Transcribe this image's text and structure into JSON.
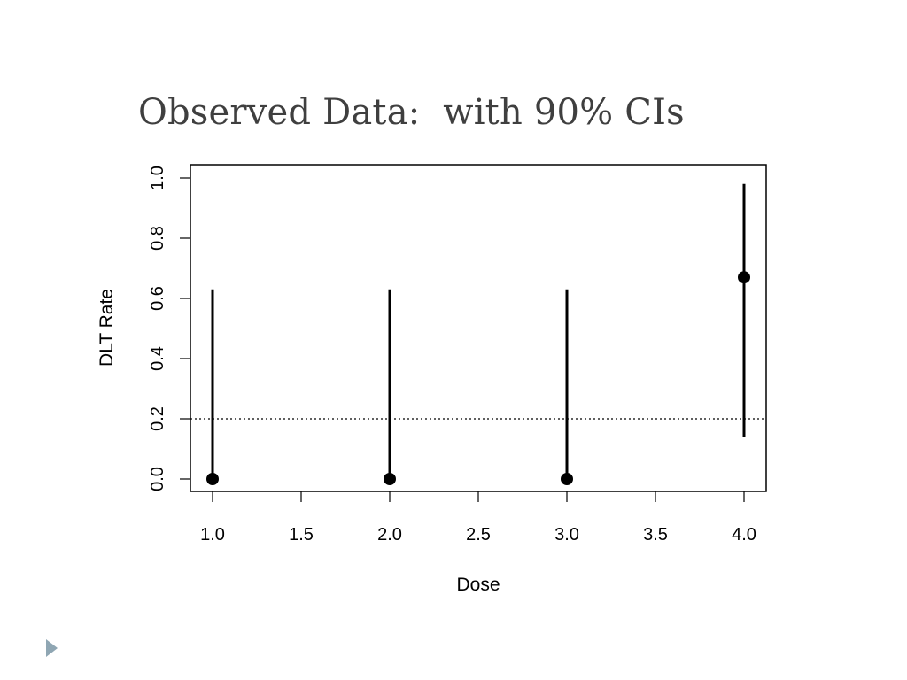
{
  "slide": {
    "title": "Observed Data:  with 90% CIs"
  },
  "chart_data": {
    "type": "scatter",
    "title": "",
    "xlabel": "Dose",
    "ylabel": "DLT Rate",
    "xlim": [
      1.0,
      4.0
    ],
    "ylim": [
      0.0,
      1.0
    ],
    "xticks": [
      "1.0",
      "1.5",
      "2.0",
      "2.5",
      "3.0",
      "3.5",
      "4.0"
    ],
    "yticks": [
      "0.0",
      "0.2",
      "0.4",
      "0.6",
      "0.8",
      "1.0"
    ],
    "grid": false,
    "legend": "none",
    "reference_line": {
      "y": 0.2,
      "style": "dotted"
    },
    "points": [
      {
        "x": 1.0,
        "y": 0.0,
        "ci_low": 0.0,
        "ci_high": 0.63
      },
      {
        "x": 2.0,
        "y": 0.0,
        "ci_low": 0.0,
        "ci_high": 0.63
      },
      {
        "x": 3.0,
        "y": 0.0,
        "ci_low": 0.0,
        "ci_high": 0.63
      },
      {
        "x": 4.0,
        "y": 0.67,
        "ci_low": 0.14,
        "ci_high": 0.98
      }
    ],
    "colors": {
      "marks": "#000000",
      "title": "#3f3f3f",
      "accent": "#8fa6b3"
    }
  }
}
